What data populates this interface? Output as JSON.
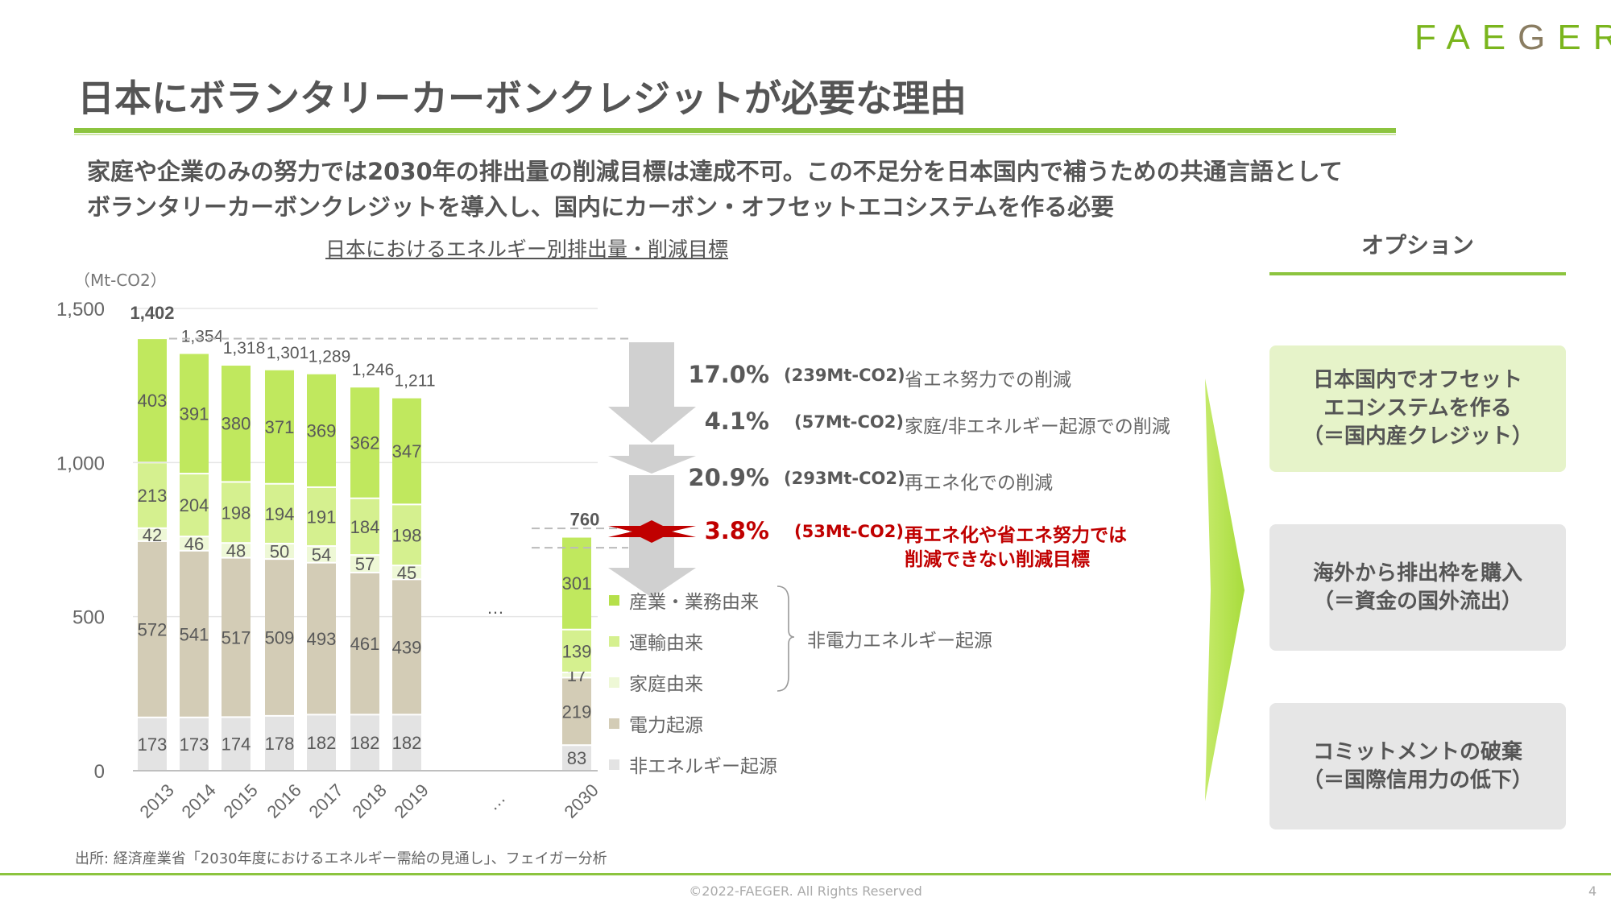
{
  "logo": {
    "text": "FAEGER",
    "colors": {
      "main": "#7ab51d",
      "g": "#8a7d62"
    }
  },
  "title": "日本にボランタリーカーボンクレジットが必要な理由",
  "subtitle": [
    "家庭や企業のみの努力では2030年の排出量の削減目標は達成不可。この不足分を日本国内で補うための共通言語として",
    "ボランタリーカーボンクレジットを導入し、国内にカーボン・オフセットエコシステムを作る必要"
  ],
  "chart_data": {
    "type": "bar",
    "stacked": true,
    "title": "日本におけるエネルギー別排出量・削減目標",
    "ylabel": "（Mt-CO2）",
    "ylim": [
      0,
      1500
    ],
    "yticks": [
      0,
      500,
      1000,
      1500
    ],
    "ytick_labels": [
      "0",
      "500",
      "1,000",
      "1,500"
    ],
    "categories": [
      "2013",
      "2014",
      "2015",
      "2016",
      "2017",
      "2018",
      "2019",
      "…",
      "2030"
    ],
    "gap_label": "…",
    "series": [
      {
        "name": "非エネルギー起源",
        "color": "#e3e3e3",
        "values": [
          173,
          173,
          174,
          178,
          182,
          182,
          182,
          null,
          83
        ]
      },
      {
        "name": "電力起源",
        "color": "#d3ccb6",
        "values": [
          572,
          541,
          517,
          509,
          493,
          461,
          439,
          null,
          219
        ]
      },
      {
        "name": "家庭由来",
        "color": "#eef8d6",
        "values": [
          42,
          46,
          48,
          50,
          54,
          57,
          45,
          null,
          17
        ]
      },
      {
        "name": "運輸由来",
        "color": "#d5f08f",
        "values": [
          213,
          204,
          198,
          194,
          191,
          184,
          198,
          null,
          139
        ]
      },
      {
        "name": "産業・業務由来",
        "color": "#c0e85e",
        "values": [
          403,
          391,
          380,
          371,
          369,
          362,
          347,
          null,
          301
        ]
      }
    ],
    "totals": [
      "1,402",
      "1,354",
      "1,318",
      "1,301",
      "1,289",
      "1,246",
      "1,211",
      null,
      "760"
    ],
    "legend_order": [
      "産業・業務由来",
      "運輸由来",
      "家庭由来",
      "電力起源",
      "非エネルギー起源"
    ],
    "legend_group": "非電力エネルギー起源",
    "legend_placement": "right",
    "reductions": [
      {
        "pct": "17.0%",
        "amount": "(239Mt-CO2)",
        "desc": "省エネ努力での削減"
      },
      {
        "pct": "4.1%",
        "amount": "(57Mt-CO2)",
        "desc": "家庭/非エネルギー起源での削減"
      },
      {
        "pct": "20.9%",
        "amount": "(293Mt-CO2)",
        "desc": "再エネ化での削減"
      },
      {
        "pct": "3.8%",
        "amount": "(53Mt-CO2)",
        "desc": "再エネ化や省エネ努力では",
        "desc2": "削減できない削減目標"
      }
    ]
  },
  "options": {
    "heading": "オプション",
    "items": [
      {
        "lines": [
          "日本国内でオフセット",
          "エコシステムを作る",
          "（＝国内産クレジット）"
        ],
        "color": "#e6f3c9"
      },
      {
        "lines": [
          "海外から排出枠を購入",
          "（＝資金の国外流出）"
        ],
        "color": "#e6e6e6"
      },
      {
        "lines": [
          "コミットメントの破棄",
          "（＝国際信用力の低下）"
        ],
        "color": "#e6e6e6"
      }
    ]
  },
  "source": "出所: 経済産業省「2030年度におけるエネルギー需給の見通し」、フェイガー分析",
  "footer": "©2022-FAEGER. All Rights Reserved",
  "page_number": "4"
}
